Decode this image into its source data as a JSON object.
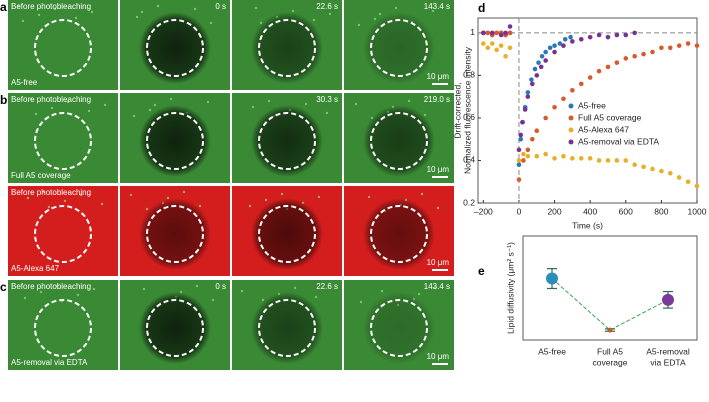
{
  "image_rows": [
    {
      "panel": "a",
      "color": "green",
      "captions": [
        "Before photobleaching",
        "0 s",
        "22.6 s",
        "143.4 s"
      ],
      "label": "A5-free",
      "scale_bar": "10 μm"
    },
    {
      "panel": "b",
      "color": "green",
      "captions": [
        "Before photobleaching",
        "30.3 s",
        "219.0 s"
      ],
      "label": "Full A5 coverage",
      "scale_bar": "10 μm"
    },
    {
      "color": "red",
      "captions": [
        "Before photobleaching"
      ],
      "label": "A5-Alexa 647",
      "scale_bar": "10 μm"
    },
    {
      "panel": "c",
      "color": "green",
      "captions": [
        "Before photobleaching",
        "0 s",
        "22.6 s",
        "143.4 s"
      ],
      "label": "A5-removal via EDTA",
      "scale_bar": "10 μm"
    }
  ],
  "chart_data": [
    {
      "type": "scatter",
      "panel": "d",
      "xlabel": "Time (s)",
      "ylabel": [
        "Drift-corrected,",
        "Normalized fluorescence intensity"
      ],
      "xlim": [
        -230,
        1000
      ],
      "ylim": [
        0.2,
        1.07
      ],
      "xticks": [
        {
          "value": -200,
          "label": "–200"
        },
        0,
        200,
        400,
        600,
        800,
        1000
      ],
      "yticks": [
        0.2,
        0.4,
        0.6,
        0.8,
        1
      ],
      "hlines": [
        1
      ],
      "vlines": [
        0
      ],
      "series": [
        {
          "name": "A5-free",
          "color": "#2b78b8",
          "x": [
            -200,
            -175,
            -150,
            -125,
            -100,
            -75,
            -50,
            0,
            10,
            20,
            35,
            50,
            70,
            90,
            110,
            130,
            150,
            175,
            200,
            230,
            260,
            290
          ],
          "values": [
            1,
            1,
            0.99,
            1,
            1,
            0.99,
            1,
            0.38,
            0.5,
            0.58,
            0.65,
            0.72,
            0.78,
            0.83,
            0.86,
            0.89,
            0.91,
            0.93,
            0.94,
            0.95,
            0.97,
            0.98
          ]
        },
        {
          "name": "Full A5 coverage",
          "color": "#d75a2b",
          "x": [
            -200,
            -175,
            -150,
            -125,
            -100,
            -75,
            -50,
            0,
            25,
            50,
            75,
            100,
            150,
            200,
            250,
            300,
            350,
            400,
            450,
            500,
            550,
            600,
            650,
            700,
            750,
            800,
            850,
            900,
            950,
            1000
          ],
          "values": [
            1,
            1,
            0.99,
            1,
            1,
            0.99,
            1,
            0.31,
            0.4,
            0.45,
            0.5,
            0.54,
            0.6,
            0.65,
            0.69,
            0.73,
            0.76,
            0.79,
            0.82,
            0.84,
            0.86,
            0.88,
            0.89,
            0.9,
            0.91,
            0.93,
            0.93,
            0.94,
            0.95,
            0.94
          ]
        },
        {
          "name": "A5-Alexa 647",
          "color": "#e6b02a",
          "x": [
            -200,
            -175,
            -150,
            -125,
            -100,
            -75,
            -50,
            0,
            25,
            50,
            100,
            150,
            200,
            250,
            300,
            350,
            400,
            450,
            500,
            550,
            600,
            650,
            700,
            750,
            800,
            850,
            900,
            950,
            1000
          ],
          "values": [
            0.95,
            0.93,
            0.95,
            0.92,
            0.94,
            0.89,
            0.93,
            0.4,
            0.43,
            0.42,
            0.42,
            0.43,
            0.41,
            0.42,
            0.41,
            0.41,
            0.41,
            0.4,
            0.4,
            0.4,
            0.4,
            0.38,
            0.37,
            0.36,
            0.35,
            0.34,
            0.32,
            0.3,
            0.28
          ]
        },
        {
          "name": "A5-removal via EDTA",
          "color": "#7a2f95",
          "x": [
            -200,
            -150,
            -100,
            -75,
            -50,
            0,
            10,
            20,
            35,
            50,
            75,
            100,
            125,
            150,
            200,
            250,
            300,
            350,
            400,
            450,
            500,
            550,
            600,
            650
          ],
          "values": [
            1,
            1,
            0.99,
            1,
            1.03,
            0.45,
            0.52,
            0.58,
            0.64,
            0.7,
            0.76,
            0.8,
            0.84,
            0.87,
            0.91,
            0.94,
            0.96,
            0.97,
            0.98,
            0.99,
            0.98,
            0.99,
            0.99,
            1
          ]
        }
      ]
    },
    {
      "type": "errorbar",
      "panel": "e",
      "ylabel": "Lipid diffusivity (μm² s⁻¹)",
      "ylim": [
        0,
        4.4
      ],
      "categories": [
        [
          "A5-free"
        ],
        [
          "Full A5",
          "coverage"
        ],
        [
          "A5-removal",
          "via EDTA"
        ]
      ],
      "values": [
        2.6,
        0.42,
        1.7
      ],
      "errors": [
        0.42,
        0.05,
        0.35
      ],
      "colors": [
        "#2b8fb8",
        "#b0622b",
        "#7a3a9a"
      ],
      "error_color": "#2e6b55",
      "line_color": "#3aa64a"
    }
  ]
}
